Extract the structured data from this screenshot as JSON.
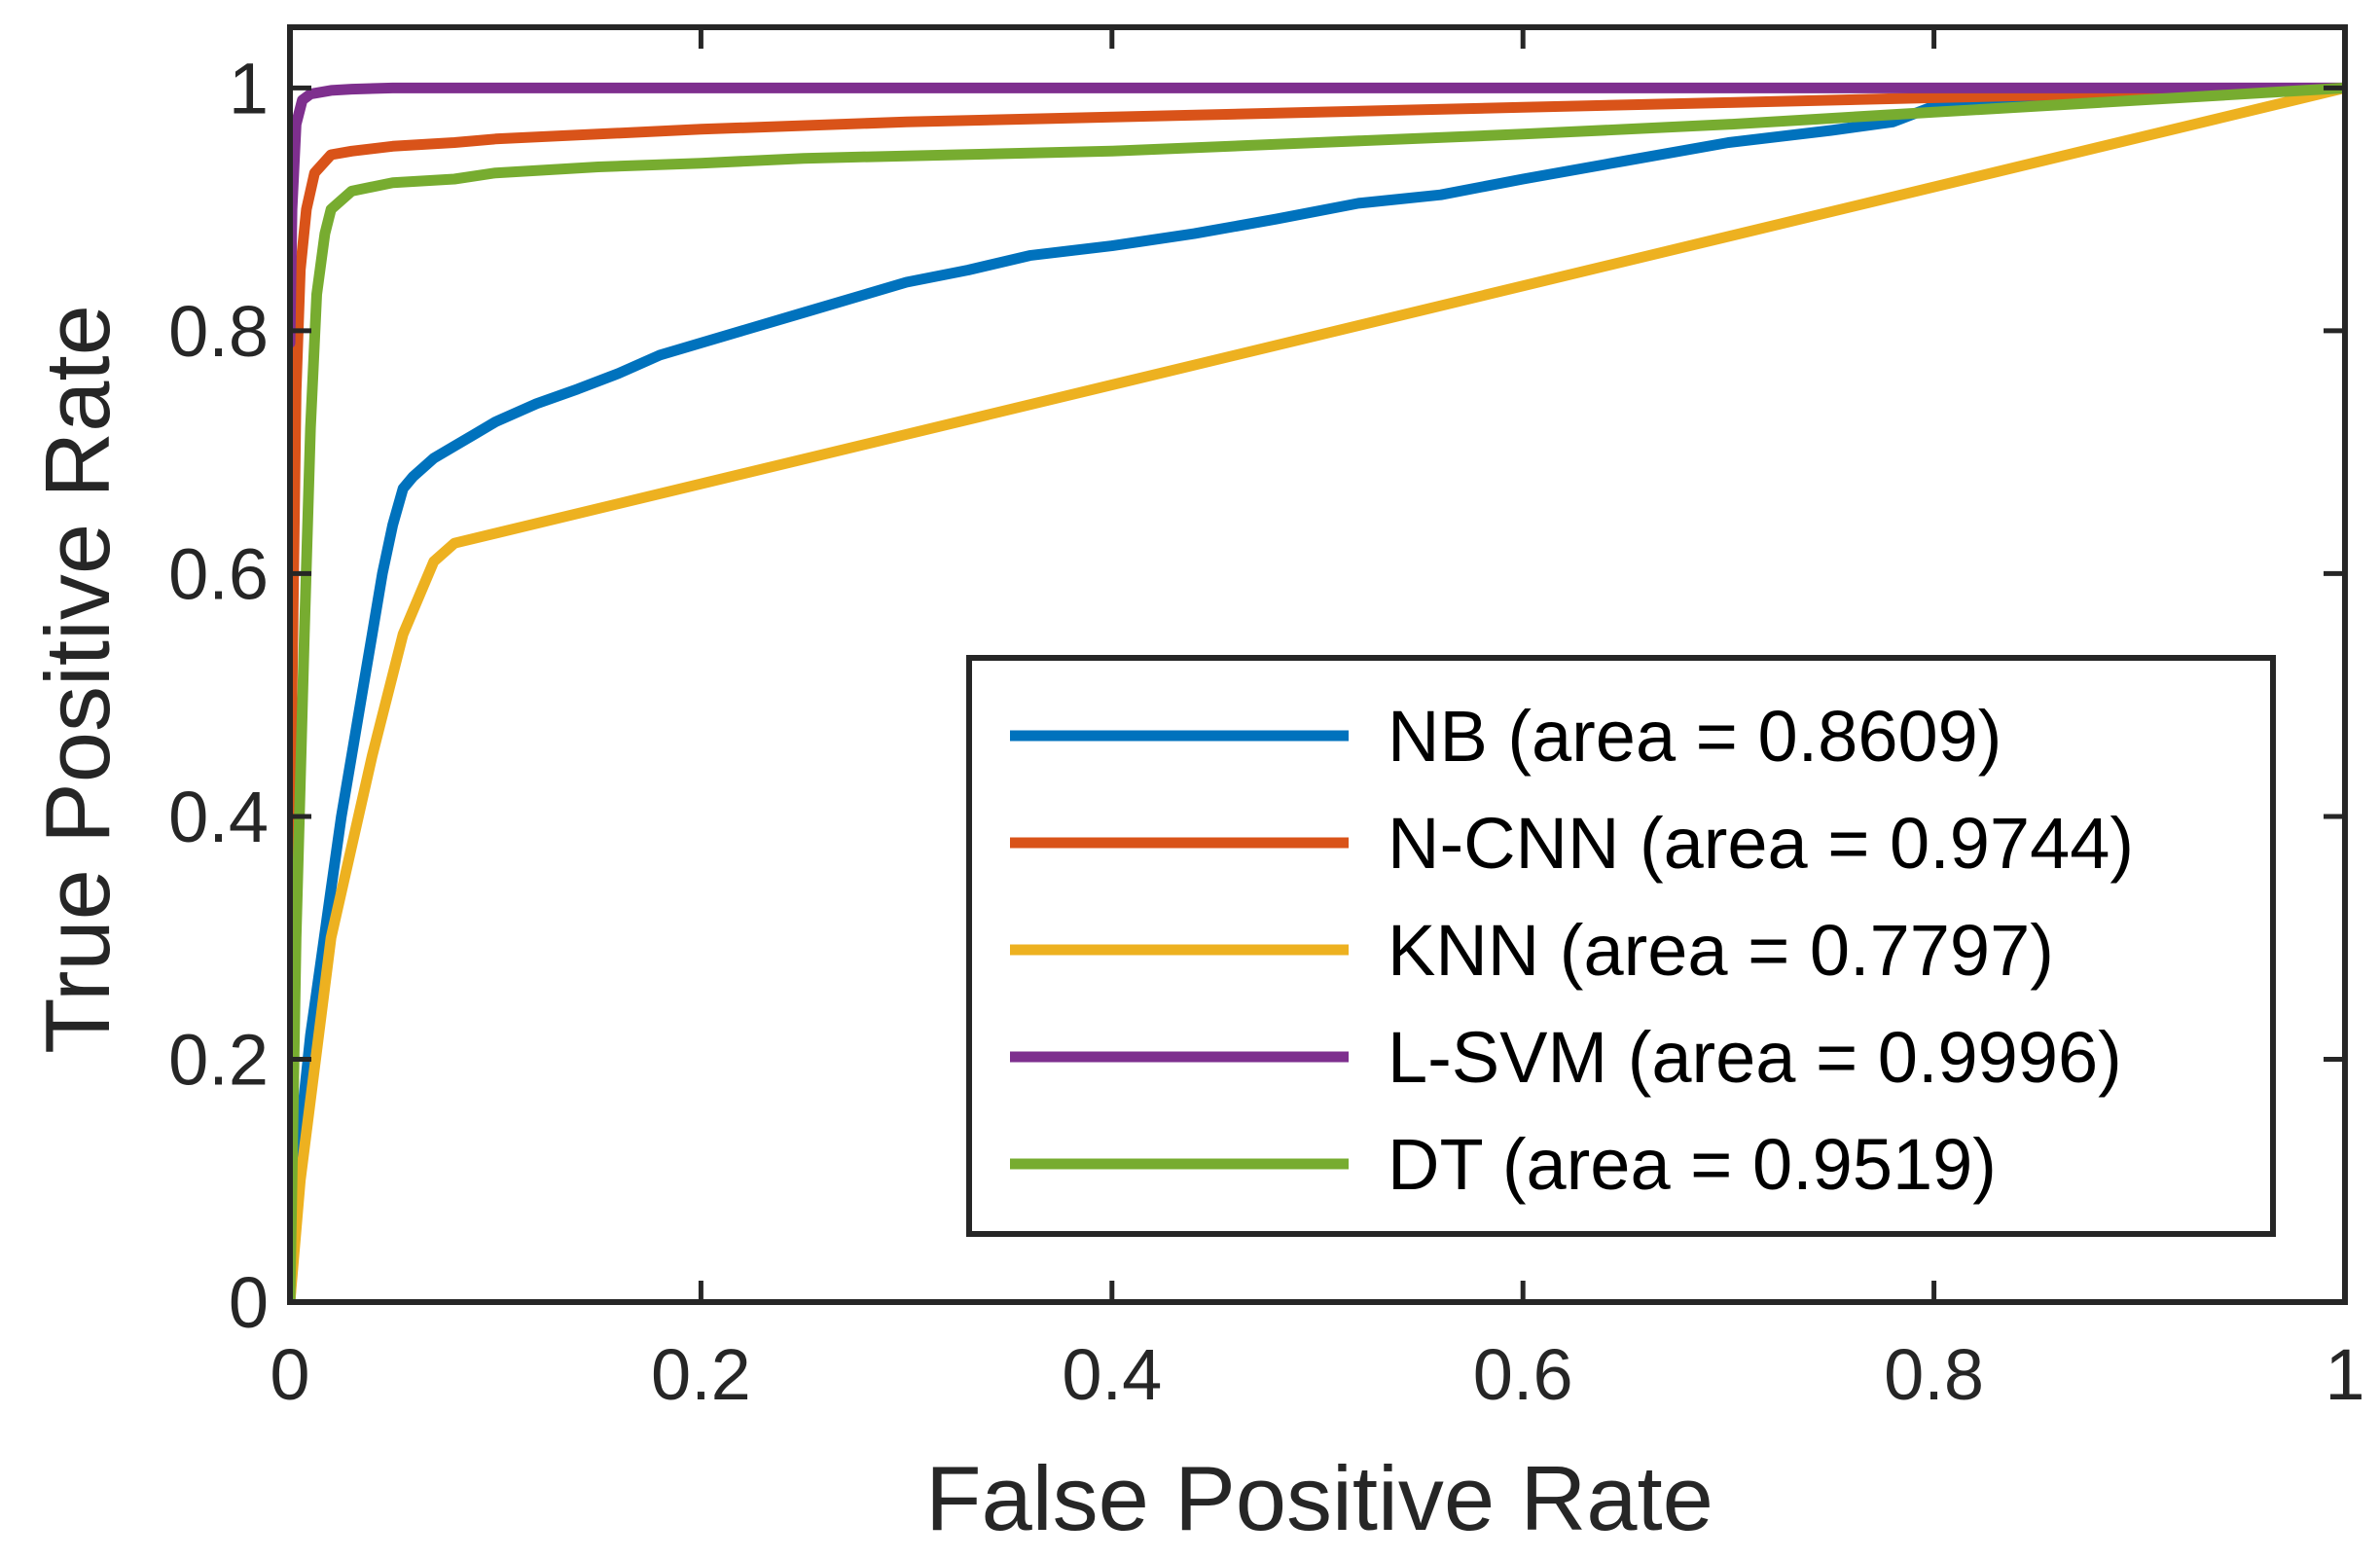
{
  "chart_data": {
    "type": "line",
    "title": "",
    "xlabel": "False Positive Rate",
    "ylabel": "True Positive Rate",
    "xlim": [
      0,
      1
    ],
    "ylim": [
      0,
      1.05
    ],
    "xticks": [
      0,
      0.2,
      0.4,
      0.6,
      0.8,
      1
    ],
    "yticks": [
      0,
      0.2,
      0.4,
      0.6,
      0.8,
      1
    ],
    "xtick_labels": [
      "0",
      "0.2",
      "0.4",
      "0.6",
      "0.8",
      "1"
    ],
    "ytick_labels": [
      "0",
      "0.2",
      "0.4",
      "0.6",
      "0.8",
      "1"
    ],
    "grid": false,
    "legend_position": "bottom-right",
    "series": [
      {
        "name": "NB (area = 0.8609)",
        "color": "#0072BD",
        "x": [
          0,
          0.005,
          0.01,
          0.015,
          0.02,
          0.025,
          0.03,
          0.035,
          0.04,
          0.045,
          0.05,
          0.055,
          0.06,
          0.07,
          0.08,
          0.09,
          0.1,
          0.12,
          0.14,
          0.16,
          0.18,
          0.2,
          0.22,
          0.25,
          0.28,
          0.3,
          0.33,
          0.36,
          0.4,
          0.44,
          0.48,
          0.52,
          0.56,
          0.6,
          0.65,
          0.7,
          0.75,
          0.78,
          0.8,
          0.85,
          0.9,
          0.95,
          1
        ],
        "y": [
          0,
          0.14,
          0.22,
          0.28,
          0.34,
          0.4,
          0.45,
          0.5,
          0.55,
          0.6,
          0.64,
          0.67,
          0.68,
          0.695,
          0.705,
          0.715,
          0.725,
          0.74,
          0.752,
          0.765,
          0.78,
          0.79,
          0.8,
          0.815,
          0.83,
          0.84,
          0.85,
          0.862,
          0.87,
          0.88,
          0.892,
          0.905,
          0.912,
          0.925,
          0.94,
          0.955,
          0.965,
          0.972,
          0.985,
          0.99,
          0.995,
          0.998,
          1
        ]
      },
      {
        "name": "N-CNN (area = 0.9744)",
        "color": "#D95319",
        "x": [
          0,
          0.001,
          0.003,
          0.005,
          0.008,
          0.012,
          0.02,
          0.03,
          0.05,
          0.08,
          0.1,
          0.15,
          0.2,
          0.3,
          0.4,
          0.5,
          0.6,
          0.7,
          0.8,
          0.9,
          1
        ],
        "y": [
          0,
          0.5,
          0.75,
          0.85,
          0.9,
          0.93,
          0.945,
          0.948,
          0.952,
          0.955,
          0.958,
          0.962,
          0.966,
          0.972,
          0.976,
          0.98,
          0.984,
          0.988,
          0.992,
          0.996,
          1
        ]
      },
      {
        "name": "KNN (area = 0.7797)",
        "color": "#EDB120",
        "x": [
          0,
          0.005,
          0.02,
          0.04,
          0.055,
          0.07,
          0.08,
          1
        ],
        "y": [
          0,
          0.1,
          0.3,
          0.45,
          0.55,
          0.61,
          0.625,
          1
        ]
      },
      {
        "name": "L-SVM (area = 0.9996)",
        "color": "#7E2F8E",
        "x": [
          0,
          0.001,
          0.003,
          0.006,
          0.01,
          0.02,
          0.03,
          0.05,
          1
        ],
        "y": [
          0.79,
          0.9,
          0.97,
          0.99,
          0.995,
          0.998,
          0.999,
          1,
          1
        ]
      },
      {
        "name": "DT (area = 0.9519)",
        "color": "#77AC30",
        "x": [
          0,
          0.003,
          0.007,
          0.01,
          0.013,
          0.017,
          0.02,
          0.03,
          0.05,
          0.08,
          0.1,
          0.15,
          0.2,
          0.25,
          0.3,
          0.4,
          0.5,
          0.6,
          0.7,
          0.8,
          0.9,
          1
        ],
        "y": [
          0,
          0.3,
          0.55,
          0.72,
          0.83,
          0.88,
          0.9,
          0.915,
          0.922,
          0.925,
          0.93,
          0.935,
          0.938,
          0.942,
          0.944,
          0.948,
          0.955,
          0.962,
          0.97,
          0.98,
          0.99,
          1
        ]
      }
    ]
  }
}
